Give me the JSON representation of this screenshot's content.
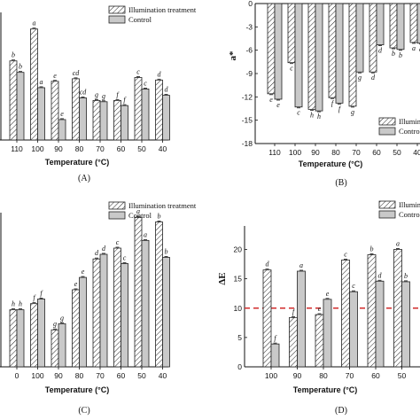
{
  "colors": {
    "treatment_fill": "#ffffff",
    "control_fill": "#c9c9c9",
    "stroke": "#222222",
    "ref_line": "#d22b2b"
  },
  "chart_data": [
    {
      "panel_label": "(A)",
      "type": "bar",
      "xlabel": "Temperature (°C)",
      "ylabel": "",
      "categories": [
        "110",
        "100",
        "90",
        "80",
        "70",
        "60",
        "50",
        "40"
      ],
      "ylim": [
        0,
        10
      ],
      "yticks": [],
      "legend": "top-right",
      "legend_entries": [
        "Illumination treatment",
        "Control"
      ],
      "series": [
        {
          "name": "Illumination treatment",
          "values": [
            6.2,
            8.7,
            4.6,
            4.8,
            3.1,
            3.1,
            4.9,
            4.7
          ],
          "labels": [
            "b",
            "a",
            "e",
            "cd",
            "g",
            "f",
            "c",
            "d"
          ]
        },
        {
          "name": "Control",
          "values": [
            5.3,
            4.1,
            1.6,
            3.3,
            3.0,
            2.7,
            4.0,
            3.5
          ],
          "labels": [
            "b",
            "a",
            "e",
            "cd",
            "g",
            "f",
            "c",
            "d"
          ]
        }
      ]
    },
    {
      "panel_label": "(B)",
      "type": "bar",
      "xlabel": "Temperature (°C)",
      "ylabel": "a*",
      "categories": [
        "110",
        "100",
        "90",
        "80",
        "70",
        "60",
        "50",
        "40"
      ],
      "ylim": [
        -18,
        0
      ],
      "yticks": [
        "0",
        "-3",
        "-6",
        "-9",
        "-12",
        "-15",
        "-18"
      ],
      "legend": "bottom-right",
      "legend_entries": [
        "Illumination",
        "Control"
      ],
      "series": [
        {
          "name": "Illumination",
          "values": [
            -11.6,
            -7.6,
            -13.6,
            -12.1,
            -13.2,
            -8.8,
            -5.7,
            -5.0
          ],
          "labels": [
            "e",
            "c",
            "h",
            "f",
            "g",
            "d",
            "b",
            "a"
          ]
        },
        {
          "name": "Control",
          "values": [
            -12.3,
            -13.3,
            -13.8,
            -12.8,
            -8.8,
            -5.3,
            -5.9,
            -5.1
          ],
          "labels": [
            "e",
            "c",
            "h",
            "f",
            "g",
            "d",
            "b",
            "a"
          ]
        }
      ]
    },
    {
      "panel_label": "(C)",
      "type": "bar",
      "xlabel": "Temperature (°C)",
      "ylabel": "",
      "categories": [
        "0",
        "100",
        "90",
        "80",
        "70",
        "60",
        "50",
        "40"
      ],
      "ylim": [
        0,
        10
      ],
      "yticks": [],
      "legend": "top-right",
      "legend_entries": [
        "Illumination treatment",
        "Control"
      ],
      "series": [
        {
          "name": "Illumination treatment",
          "values": [
            3.7,
            4.1,
            2.4,
            5.0,
            7.0,
            7.7,
            9.7,
            9.4
          ],
          "labels": [
            "h",
            "f",
            "g",
            "e",
            "d",
            "c",
            "a",
            "b"
          ]
        },
        {
          "name": "Control",
          "values": [
            3.7,
            4.4,
            2.8,
            5.8,
            7.3,
            6.7,
            8.2,
            7.1
          ],
          "labels": [
            "h",
            "f",
            "g",
            "e",
            "d",
            "c",
            "a",
            "b"
          ]
        }
      ]
    },
    {
      "panel_label": "(D)",
      "type": "bar",
      "xlabel": "Temperature (°C)",
      "ylabel": "ΔE",
      "categories": [
        "100",
        "90",
        "80",
        "70",
        "60",
        "50"
      ],
      "ylim": [
        0,
        24
      ],
      "yticks": [
        "0",
        "5",
        "10",
        "15",
        "20"
      ],
      "reference_line": 10,
      "legend": "top-right",
      "legend_entries": [
        "Illumination",
        "Control"
      ],
      "series": [
        {
          "name": "Illumination",
          "values": [
            16.5,
            8.4,
            8.9,
            18.2,
            19.1,
            20.0
          ],
          "labels": [
            "d",
            "f",
            "e",
            "c",
            "b",
            "a"
          ]
        },
        {
          "name": "Control",
          "values": [
            3.9,
            16.3,
            11.5,
            12.8,
            14.6,
            14.5
          ],
          "labels": [
            "f",
            "a",
            "e",
            "c",
            "d",
            "b"
          ]
        }
      ]
    }
  ]
}
